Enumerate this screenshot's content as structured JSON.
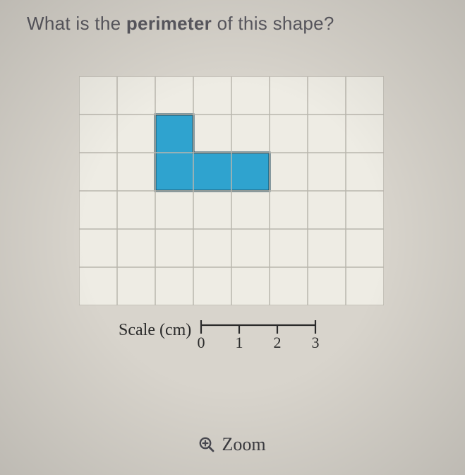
{
  "question": {
    "prefix": "What is the ",
    "bold": "perimeter",
    "suffix": " of this shape?"
  },
  "grid": {
    "cols": 8,
    "rows": 6,
    "cell": 54,
    "background": "#eeece4",
    "line_color": "#b9b6ad",
    "line_width": 1.5,
    "shape": {
      "fill": "#2fa3cf",
      "stroke": "#18445a",
      "stroke_width": 3,
      "points": [
        [
          2,
          1
        ],
        [
          3,
          1
        ],
        [
          3,
          2
        ],
        [
          5,
          2
        ],
        [
          5,
          3
        ],
        [
          2,
          3
        ]
      ]
    }
  },
  "scale": {
    "label": "Scale (cm)",
    "ticks": [
      0,
      1,
      2,
      3
    ],
    "tick_spacing": 54,
    "tick_height": 12,
    "line_color": "#2a2a2a",
    "font_size": 22
  },
  "zoom": {
    "label": "Zoom",
    "icon_color": "#4a4a52"
  }
}
